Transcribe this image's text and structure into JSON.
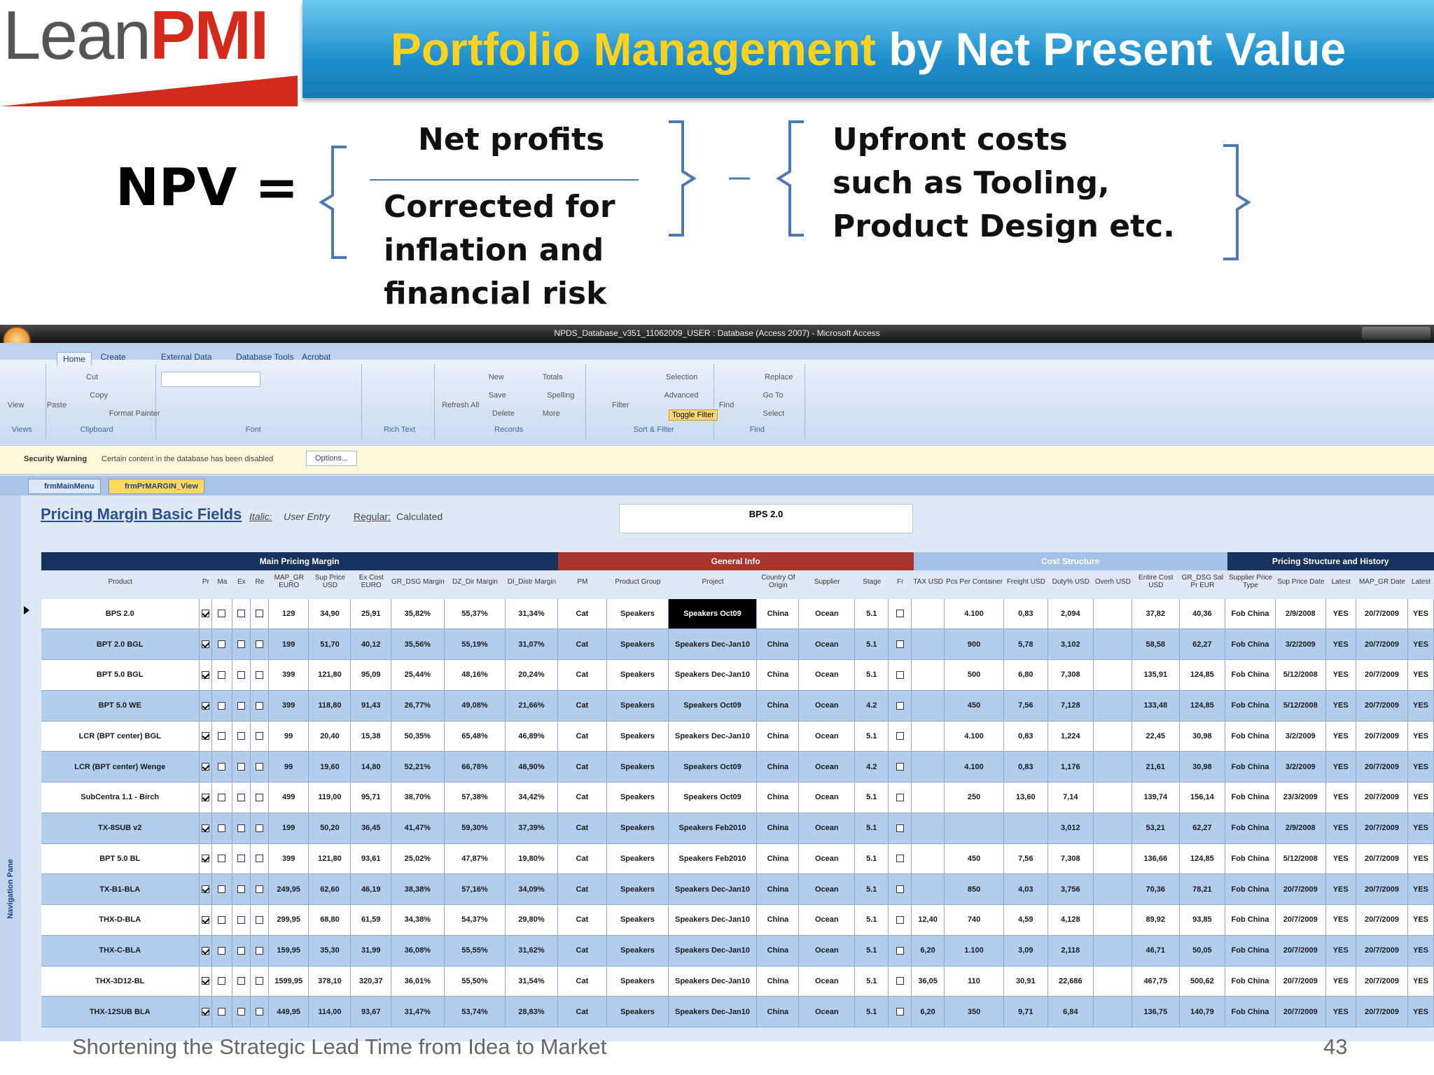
{
  "header": {
    "logo": {
      "lean": "Lean",
      "pmi": "PMI"
    },
    "title_highlight": "Portfolio Management",
    "title_rest": "by Net Present Value"
  },
  "formula": {
    "npv": "NPV =",
    "numerator": "Net profits",
    "denominator": [
      "Corrected for",
      "inflation and",
      "financial risk"
    ],
    "upfront": [
      "Upfront costs",
      "such as Tooling,",
      "Product Design etc."
    ]
  },
  "window": {
    "title": "NPDS_Database_v351_11062009_USER : Database (Access 2007) - Microsoft Access",
    "tabs": [
      "Home",
      "Create",
      "External Data",
      "Database Tools",
      "Acrobat"
    ],
    "groups": [
      "Views",
      "Clipboard",
      "Font",
      "Rich Text",
      "Records",
      "Sort & Filter",
      "Find"
    ],
    "buttons": [
      "View",
      "Paste",
      "Cut",
      "Copy",
      "Format Painter",
      "Refresh All",
      "New",
      "Save",
      "Delete",
      "Totals",
      "Spelling",
      "More",
      "Filter",
      "Selection",
      "Advanced",
      "Toggle Filter",
      "Find",
      "Replace",
      "Go To",
      "Select"
    ],
    "security": {
      "label": "Security Warning",
      "message": "Certain content in the database has been disabled",
      "button": "Options..."
    },
    "doc_tabs": [
      "frmMainMenu",
      "frmPrMARGIN_View"
    ],
    "nav_pane": "Navigation Pane"
  },
  "form": {
    "title": "Pricing Margin Basic Fields",
    "legend": [
      "Italic:",
      "User Entry",
      "Regular:",
      "Calculated"
    ],
    "current": "BPS 2.0",
    "sections": [
      "Main Pricing Margin",
      "General Info",
      "Cost Structure",
      "Pricing Structure and History"
    ]
  },
  "table": {
    "columns": [
      "Product",
      "Pr",
      "Ma",
      "Ex",
      "Re",
      "MAP_GR EURO",
      "Sup Price USD",
      "Ex Cost EURO",
      "GR_DSG Margin",
      "DZ_Dir Margin",
      "DI_Distr Margin",
      "PM",
      "Product Group",
      "Project",
      "Country Of Origin",
      "Supplier",
      "Stage",
      "Fr",
      "TAX USD",
      "Pcs Per Container",
      "Freight USD",
      "Duty% USD",
      "Overh USD",
      "Entire Cost USD",
      "GR_DSG Sal Pr EUR",
      "Supplier Price Type",
      "Sup Price Date",
      "Latest",
      "MAP_GR Date",
      "Latest"
    ],
    "rows": [
      [
        "BPS 2.0",
        true,
        false,
        false,
        false,
        "129",
        "34,90",
        "25,91",
        "35,82%",
        "55,37%",
        "31,34%",
        "Cat",
        "Speakers",
        "Speakers Oct09",
        "China",
        "Ocean",
        "5.1",
        false,
        null,
        "4.100",
        "0,83",
        "2,094",
        null,
        "37,82",
        "40,36",
        "Fob China",
        "2/9/2008",
        "YES",
        "20/7/2009",
        "YES"
      ],
      [
        "BPT 2.0 BGL",
        true,
        false,
        false,
        false,
        "199",
        "51,70",
        "40,12",
        "35,56%",
        "55,19%",
        "31,07%",
        "Cat",
        "Speakers",
        "Speakers Dec-Jan10",
        "China",
        "Ocean",
        "5.1",
        false,
        null,
        "900",
        "5,78",
        "3,102",
        null,
        "58,58",
        "62,27",
        "Fob China",
        "3/2/2009",
        "YES",
        "20/7/2009",
        "YES"
      ],
      [
        "BPT 5.0 BGL",
        true,
        false,
        false,
        false,
        "399",
        "121,80",
        "95,09",
        "25,44%",
        "48,16%",
        "20,24%",
        "Cat",
        "Speakers",
        "Speakers Dec-Jan10",
        "China",
        "Ocean",
        "5.1",
        false,
        null,
        "500",
        "6,80",
        "7,308",
        null,
        "135,91",
        "124,85",
        "Fob China",
        "5/12/2008",
        "YES",
        "20/7/2009",
        "YES"
      ],
      [
        "BPT 5.0 WE",
        true,
        false,
        false,
        false,
        "399",
        "118,80",
        "91,43",
        "26,77%",
        "49,08%",
        "21,66%",
        "Cat",
        "Speakers",
        "Speakers Oct09",
        "China",
        "Ocean",
        "4.2",
        false,
        null,
        "450",
        "7,56",
        "7,128",
        null,
        "133,48",
        "124,85",
        "Fob China",
        "5/12/2008",
        "YES",
        "20/7/2009",
        "YES"
      ],
      [
        "LCR (BPT center) BGL",
        true,
        false,
        false,
        false,
        "99",
        "20,40",
        "15,38",
        "50,35%",
        "65,48%",
        "46,89%",
        "Cat",
        "Speakers",
        "Speakers Dec-Jan10",
        "China",
        "Ocean",
        "5.1",
        false,
        null,
        "4.100",
        "0,83",
        "1,224",
        null,
        "22,45",
        "30,98",
        "Fob China",
        "3/2/2009",
        "YES",
        "20/7/2009",
        "YES"
      ],
      [
        "LCR (BPT center) Wenge",
        true,
        false,
        false,
        false,
        "99",
        "19,60",
        "14,80",
        "52,21%",
        "66,78%",
        "48,90%",
        "Cat",
        "Speakers",
        "Speakers Oct09",
        "China",
        "Ocean",
        "4.2",
        false,
        null,
        "4.100",
        "0,83",
        "1,176",
        null,
        "21,61",
        "30,98",
        "Fob China",
        "3/2/2009",
        "YES",
        "20/7/2009",
        "YES"
      ],
      [
        "SubCentra 1.1 - Birch",
        true,
        false,
        false,
        false,
        "499",
        "119,00",
        "95,71",
        "38,70%",
        "57,38%",
        "34,42%",
        "Cat",
        "Speakers",
        "Speakers Oct09",
        "China",
        "Ocean",
        "5.1",
        false,
        null,
        "250",
        "13,60",
        "7,14",
        null,
        "139,74",
        "156,14",
        "Fob China",
        "23/3/2009",
        "YES",
        "20/7/2009",
        "YES"
      ],
      [
        "TX-8SUB v2",
        true,
        false,
        false,
        false,
        "199",
        "50,20",
        "36,45",
        "41,47%",
        "59,30%",
        "37,39%",
        "Cat",
        "Speakers",
        "Speakers Feb2010",
        "China",
        "Ocean",
        "5.1",
        false,
        null,
        null,
        null,
        "3,012",
        null,
        "53,21",
        "62,27",
        "Fob China",
        "2/9/2008",
        "YES",
        "20/7/2009",
        "YES"
      ],
      [
        "BPT 5.0 BL",
        true,
        false,
        false,
        false,
        "399",
        "121,80",
        "93,61",
        "25,02%",
        "47,87%",
        "19,80%",
        "Cat",
        "Speakers",
        "Speakers Feb2010",
        "China",
        "Ocean",
        "5.1",
        false,
        null,
        "450",
        "7,56",
        "7,308",
        null,
        "136,66",
        "124,85",
        "Fob China",
        "5/12/2008",
        "YES",
        "20/7/2009",
        "YES"
      ],
      [
        "TX-B1-BLA",
        true,
        false,
        false,
        false,
        "249,95",
        "62,60",
        "46,19",
        "38,38%",
        "57,16%",
        "34,09%",
        "Cat",
        "Speakers",
        "Speakers Dec-Jan10",
        "China",
        "Ocean",
        "5.1",
        false,
        null,
        "850",
        "4,03",
        "3,756",
        null,
        "70,36",
        "78,21",
        "Fob China",
        "20/7/2009",
        "YES",
        "20/7/2009",
        "YES"
      ],
      [
        "THX-D-BLA",
        true,
        false,
        false,
        false,
        "299,95",
        "68,80",
        "61,59",
        "34,38%",
        "54,37%",
        "29,80%",
        "Cat",
        "Speakers",
        "Speakers Dec-Jan10",
        "China",
        "Ocean",
        "5.1",
        false,
        "12,40",
        "740",
        "4,59",
        "4,128",
        null,
        "89,92",
        "93,85",
        "Fob China",
        "20/7/2009",
        "YES",
        "20/7/2009",
        "YES"
      ],
      [
        "THX-C-BLA",
        true,
        false,
        false,
        false,
        "159,95",
        "35,30",
        "31,99",
        "36,08%",
        "55,55%",
        "31,62%",
        "Cat",
        "Speakers",
        "Speakers Dec-Jan10",
        "China",
        "Ocean",
        "5.1",
        false,
        "6,20",
        "1.100",
        "3,09",
        "2,118",
        null,
        "46,71",
        "50,05",
        "Fob China",
        "20/7/2009",
        "YES",
        "20/7/2009",
        "YES"
      ],
      [
        "THX-3D12-BL",
        true,
        false,
        false,
        false,
        "1599,95",
        "378,10",
        "320,37",
        "36,01%",
        "55,50%",
        "31,54%",
        "Cat",
        "Speakers",
        "Speakers Dec-Jan10",
        "China",
        "Ocean",
        "5.1",
        false,
        "36,05",
        "110",
        "30,91",
        "22,686",
        null,
        "467,75",
        "500,62",
        "Fob China",
        "20/7/2009",
        "YES",
        "20/7/2009",
        "YES"
      ],
      [
        "THX-12SUB BLA",
        true,
        false,
        false,
        false,
        "449,95",
        "114,00",
        "93,67",
        "31,47%",
        "53,74%",
        "28,83%",
        "Cat",
        "Speakers",
        "Speakers Dec-Jan10",
        "China",
        "Ocean",
        "5.1",
        false,
        "6,20",
        "350",
        "9,71",
        "6,84",
        null,
        "136,75",
        "140,79",
        "Fob China",
        "20/7/2009",
        "YES",
        "20/7/2009",
        "YES"
      ]
    ]
  },
  "footer": {
    "text": "Shortening the Strategic Lead Time from Idea to Market",
    "page": "43"
  }
}
